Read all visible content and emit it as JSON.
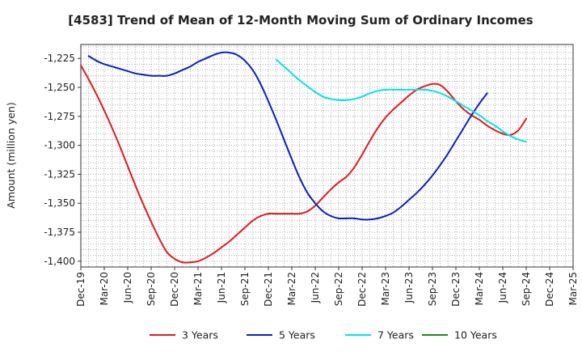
{
  "chart_data": {
    "type": "line",
    "title": "[4583]  Trend of Mean of 12-Month Moving Sum of Ordinary Incomes",
    "xlabel": "",
    "ylabel": "Amount (million yen)",
    "ylim": [
      -1405,
      -1213
    ],
    "y_ticks": [
      -1225,
      -1250,
      -1275,
      -1300,
      -1325,
      -1350,
      -1375,
      -1400
    ],
    "y_tick_labels": [
      "-1,225",
      "-1,250",
      "-1,275",
      "-1,300",
      "-1,325",
      "-1,350",
      "-1,375",
      "-1,400"
    ],
    "x_tick_labels": [
      "Dec-19",
      "Mar-20",
      "Jun-20",
      "Sep-20",
      "Dec-20",
      "Mar-21",
      "Jun-21",
      "Sep-21",
      "Dec-21",
      "Mar-22",
      "Jun-22",
      "Sep-22",
      "Dec-22",
      "Mar-23",
      "Jun-23",
      "Sep-23",
      "Dec-23",
      "Mar-24",
      "Jun-24",
      "Sep-24",
      "Dec-24",
      "Mar-25"
    ],
    "x_range_months": [
      0,
      63
    ],
    "grid": true,
    "legend_position": "bottom",
    "series": [
      {
        "name": "3 Years",
        "color": "#e31a1c",
        "points": [
          [
            0,
            -1231
          ],
          [
            1,
            -1243
          ],
          [
            2,
            -1256
          ],
          [
            3,
            -1270
          ],
          [
            4,
            -1285
          ],
          [
            5,
            -1301
          ],
          [
            6,
            -1318
          ],
          [
            7,
            -1335
          ],
          [
            8,
            -1351
          ],
          [
            9,
            -1366
          ],
          [
            10,
            -1380
          ],
          [
            11,
            -1392
          ],
          [
            12,
            -1398
          ],
          [
            13,
            -1401
          ],
          [
            14,
            -1401
          ],
          [
            15,
            -1400
          ],
          [
            16,
            -1397
          ],
          [
            17,
            -1393
          ],
          [
            18,
            -1388
          ],
          [
            19,
            -1383
          ],
          [
            20,
            -1377
          ],
          [
            21,
            -1371
          ],
          [
            22,
            -1365
          ],
          [
            23,
            -1361
          ],
          [
            24,
            -1359
          ],
          [
            25,
            -1359
          ],
          [
            26,
            -1359
          ],
          [
            27,
            -1359
          ],
          [
            28,
            -1359
          ],
          [
            29,
            -1357
          ],
          [
            30,
            -1352
          ],
          [
            31,
            -1345
          ],
          [
            32,
            -1338
          ],
          [
            33,
            -1332
          ],
          [
            34,
            -1327
          ],
          [
            35,
            -1319
          ],
          [
            36,
            -1308
          ],
          [
            37,
            -1296
          ],
          [
            38,
            -1285
          ],
          [
            39,
            -1276
          ],
          [
            40,
            -1269
          ],
          [
            41,
            -1263
          ],
          [
            42,
            -1257
          ],
          [
            43,
            -1252
          ],
          [
            44,
            -1249
          ],
          [
            45,
            -1247
          ],
          [
            46,
            -1248
          ],
          [
            47,
            -1254
          ],
          [
            48,
            -1262
          ],
          [
            49,
            -1269
          ],
          [
            50,
            -1274
          ],
          [
            51,
            -1278
          ],
          [
            52,
            -1283
          ],
          [
            53,
            -1287
          ],
          [
            54,
            -1290
          ],
          [
            55,
            -1291
          ],
          [
            56,
            -1287
          ],
          [
            57,
            -1277
          ]
        ]
      },
      {
        "name": "5 Years",
        "color": "#0a1fc4",
        "points": [
          [
            1,
            -1223
          ],
          [
            2,
            -1227
          ],
          [
            3,
            -1230
          ],
          [
            4,
            -1232
          ],
          [
            5,
            -1234
          ],
          [
            6,
            -1236
          ],
          [
            7,
            -1238
          ],
          [
            8,
            -1239
          ],
          [
            9,
            -1240
          ],
          [
            10,
            -1240
          ],
          [
            11,
            -1240
          ],
          [
            12,
            -1238
          ],
          [
            13,
            -1235
          ],
          [
            14,
            -1232
          ],
          [
            15,
            -1228
          ],
          [
            16,
            -1225
          ],
          [
            17,
            -1222
          ],
          [
            18,
            -1220
          ],
          [
            19,
            -1220
          ],
          [
            20,
            -1222
          ],
          [
            21,
            -1227
          ],
          [
            22,
            -1235
          ],
          [
            23,
            -1247
          ],
          [
            24,
            -1262
          ],
          [
            25,
            -1278
          ],
          [
            26,
            -1295
          ],
          [
            27,
            -1312
          ],
          [
            28,
            -1328
          ],
          [
            29,
            -1341
          ],
          [
            30,
            -1350
          ],
          [
            31,
            -1357
          ],
          [
            32,
            -1361
          ],
          [
            33,
            -1363
          ],
          [
            34,
            -1363
          ],
          [
            35,
            -1363
          ],
          [
            36,
            -1364
          ],
          [
            37,
            -1364
          ],
          [
            38,
            -1363
          ],
          [
            39,
            -1361
          ],
          [
            40,
            -1358
          ],
          [
            41,
            -1353
          ],
          [
            42,
            -1347
          ],
          [
            43,
            -1341
          ],
          [
            44,
            -1334
          ],
          [
            45,
            -1326
          ],
          [
            46,
            -1317
          ],
          [
            47,
            -1307
          ],
          [
            48,
            -1296
          ],
          [
            49,
            -1285
          ],
          [
            50,
            -1274
          ],
          [
            51,
            -1264
          ],
          [
            52,
            -1255
          ]
        ]
      },
      {
        "name": "7 Years",
        "color": "#00e5e5",
        "points": [
          [
            25,
            -1226
          ],
          [
            26,
            -1232
          ],
          [
            27,
            -1238
          ],
          [
            28,
            -1244
          ],
          [
            29,
            -1249
          ],
          [
            30,
            -1254
          ],
          [
            31,
            -1258
          ],
          [
            32,
            -1260
          ],
          [
            33,
            -1261
          ],
          [
            34,
            -1261
          ],
          [
            35,
            -1260
          ],
          [
            36,
            -1258
          ],
          [
            37,
            -1255
          ],
          [
            38,
            -1253
          ],
          [
            39,
            -1252
          ],
          [
            40,
            -1252
          ],
          [
            41,
            -1252
          ],
          [
            42,
            -1252
          ],
          [
            43,
            -1252
          ],
          [
            44,
            -1252
          ],
          [
            45,
            -1253
          ],
          [
            46,
            -1255
          ],
          [
            47,
            -1258
          ],
          [
            48,
            -1262
          ],
          [
            49,
            -1266
          ],
          [
            50,
            -1270
          ],
          [
            51,
            -1274
          ],
          [
            52,
            -1279
          ],
          [
            53,
            -1283
          ],
          [
            54,
            -1288
          ],
          [
            55,
            -1292
          ],
          [
            56,
            -1295
          ],
          [
            57,
            -1297
          ]
        ]
      },
      {
        "name": "10 Years",
        "color": "#1a8a1a",
        "points": []
      }
    ]
  }
}
